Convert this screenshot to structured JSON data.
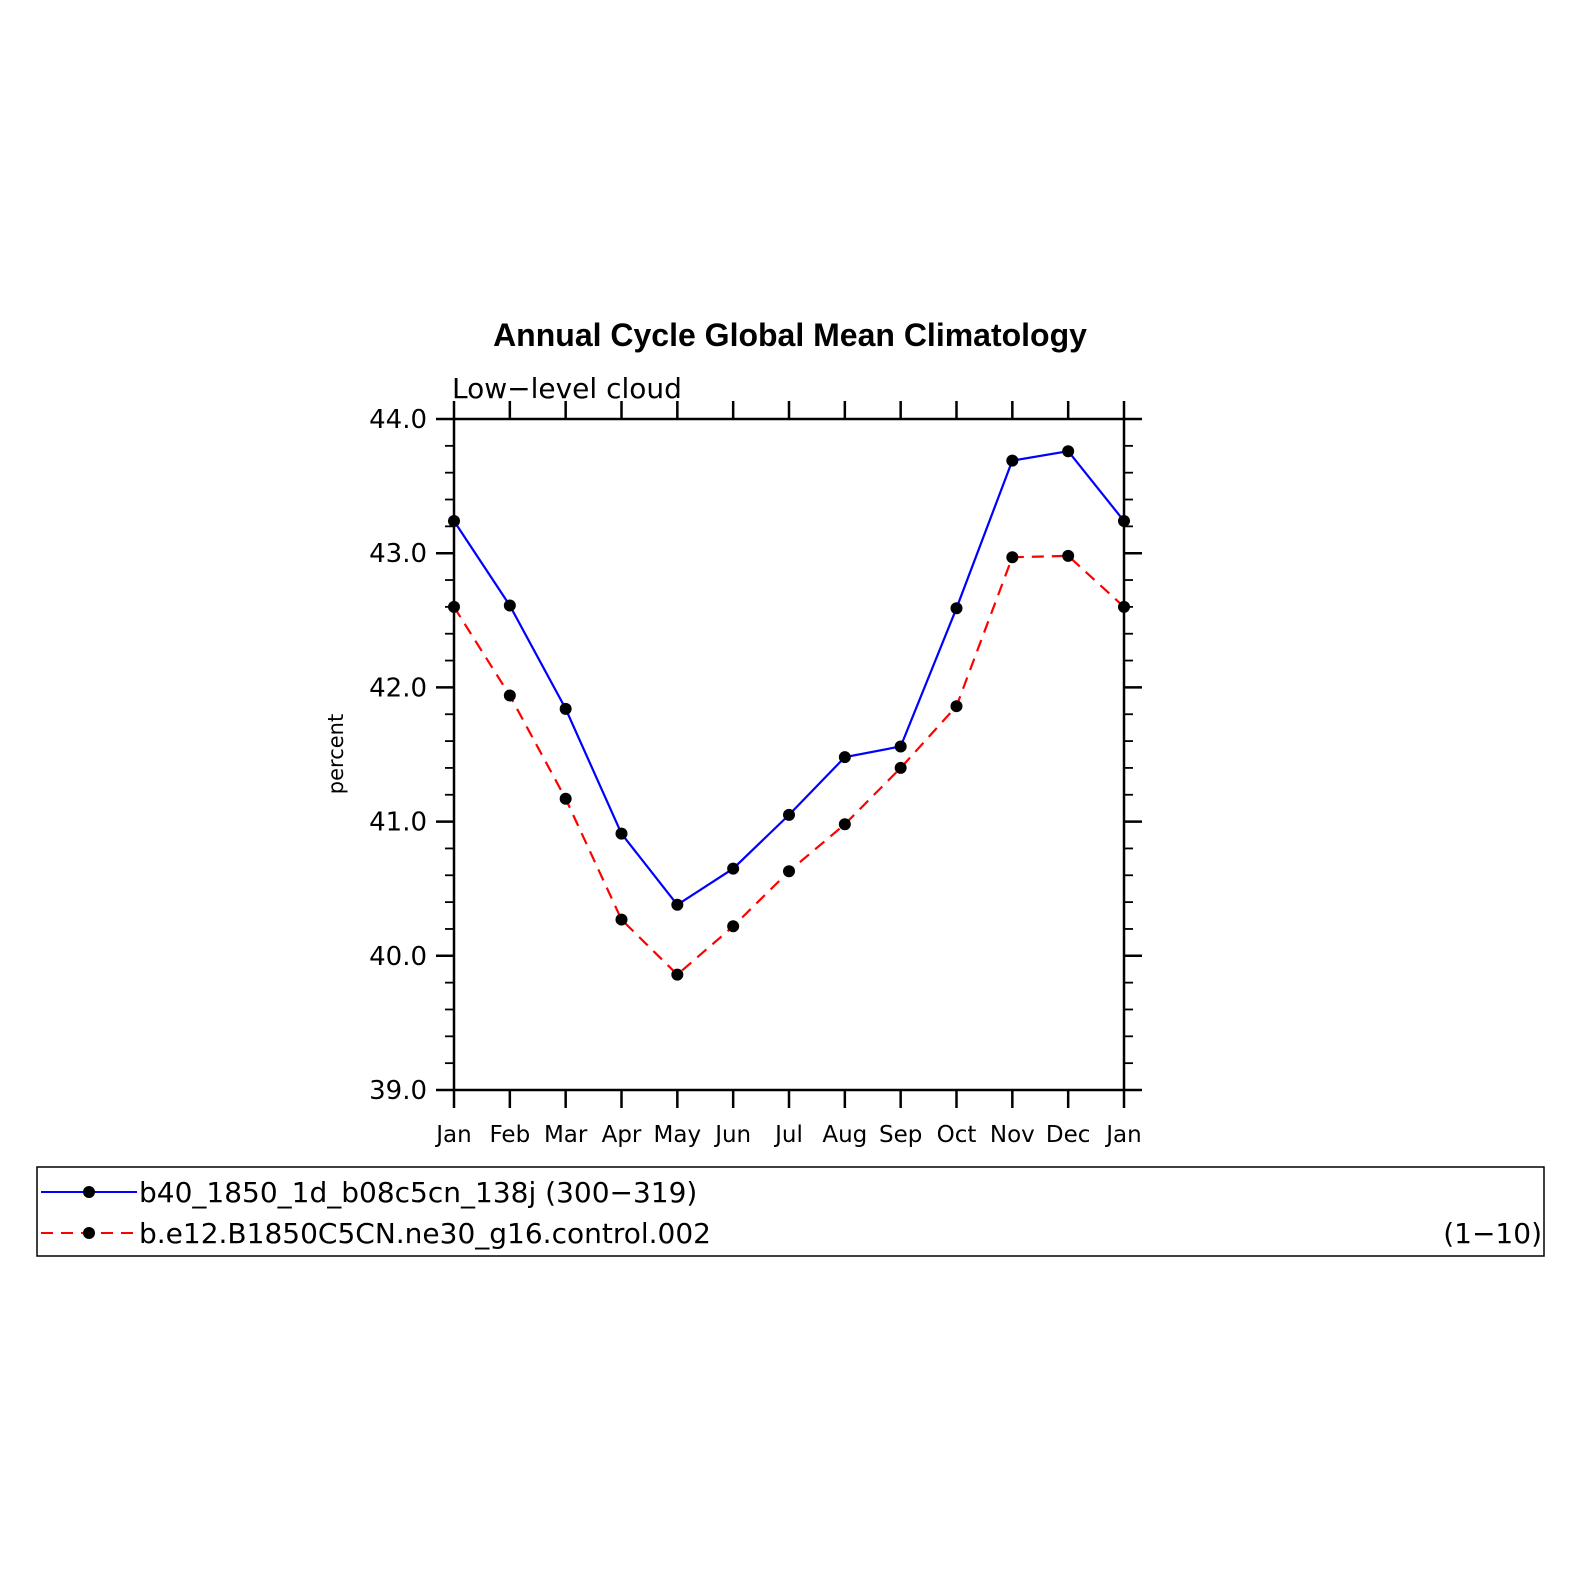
{
  "chart_data": {
    "type": "line",
    "title": "Annual Cycle Global Mean Climatology",
    "subtitle": "Low−level cloud",
    "xlabel": "",
    "ylabel": "percent",
    "ylim": [
      39.0,
      44.0
    ],
    "y_ticks": [
      "39.0",
      "40.0",
      "41.0",
      "42.0",
      "43.0",
      "44.0"
    ],
    "categories": [
      "Jan",
      "Feb",
      "Mar",
      "Apr",
      "May",
      "Jun",
      "Jul",
      "Aug",
      "Sep",
      "Oct",
      "Nov",
      "Dec",
      "Jan"
    ],
    "series": [
      {
        "name": "b40_1850_1d_b08c5cn_138j",
        "period": "(300−319)",
        "color": "#0000ff",
        "dash": "solid",
        "values": [
          43.24,
          42.61,
          41.84,
          40.91,
          40.38,
          40.65,
          41.05,
          41.48,
          41.56,
          42.59,
          43.69,
          43.76,
          43.24
        ]
      },
      {
        "name": "b.e12.B1850C5CN.ne30_g16.control.002",
        "period": "(1−10)",
        "color": "#ff0000",
        "dash": "dashed",
        "values": [
          42.6,
          41.94,
          41.17,
          40.27,
          39.86,
          40.22,
          40.63,
          40.98,
          41.4,
          41.86,
          42.97,
          42.98,
          42.6
        ]
      }
    ],
    "marker_color": "#000000",
    "grid": false,
    "legend_position": "bottom"
  }
}
